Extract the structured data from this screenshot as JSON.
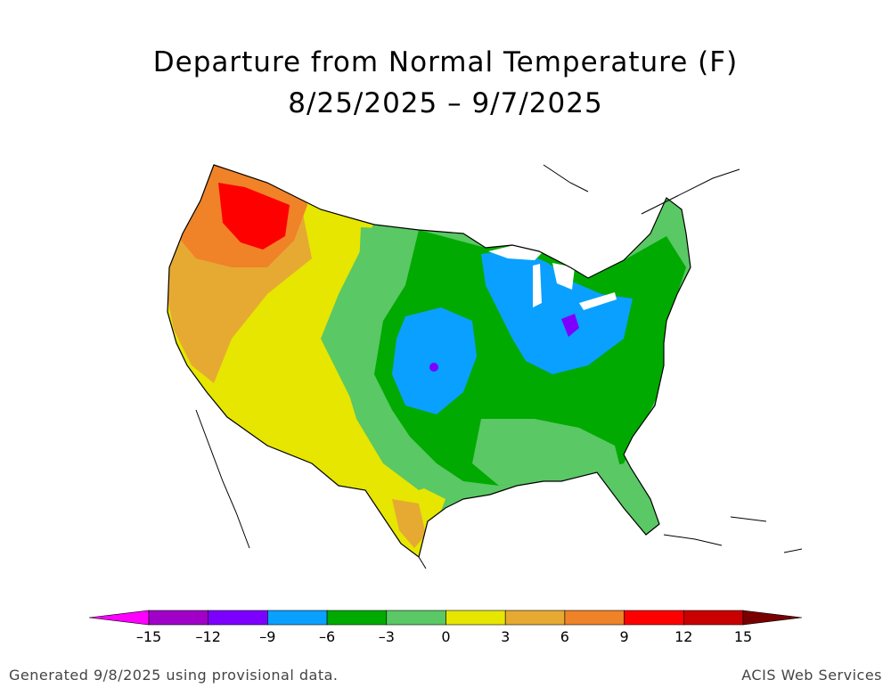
{
  "title": {
    "line1": "Departure from Normal Temperature (F)",
    "line2": "8/25/2025 – 9/7/2025"
  },
  "legend": {
    "ticks": [
      "–15",
      "–12",
      "–9",
      "–6",
      "–3",
      "0",
      "3",
      "6",
      "9",
      "12",
      "15"
    ],
    "colors": [
      "#ff00ff",
      "#a000c8",
      "#7d00ff",
      "#0aa0ff",
      "#00aa00",
      "#5ac864",
      "#e6e600",
      "#e6aa32",
      "#f08228",
      "#ff0000",
      "#c80000",
      "#780000"
    ]
  },
  "map": {
    "region": "Contiguous United States",
    "outline_color": "#000000",
    "fill_colors": {
      "strong_warm": "#ff0000",
      "warm_9": "#f08228",
      "warm_6": "#e6aa32",
      "warm_3": "#e6e600",
      "cool_0": "#5ac864",
      "cool_3": "#00aa00",
      "cool_6": "#0aa0ff",
      "cool_9": "#7d00ff"
    }
  },
  "footer": {
    "left": "Generated 9/8/2025 using provisional data.",
    "right": "ACIS Web Services"
  }
}
